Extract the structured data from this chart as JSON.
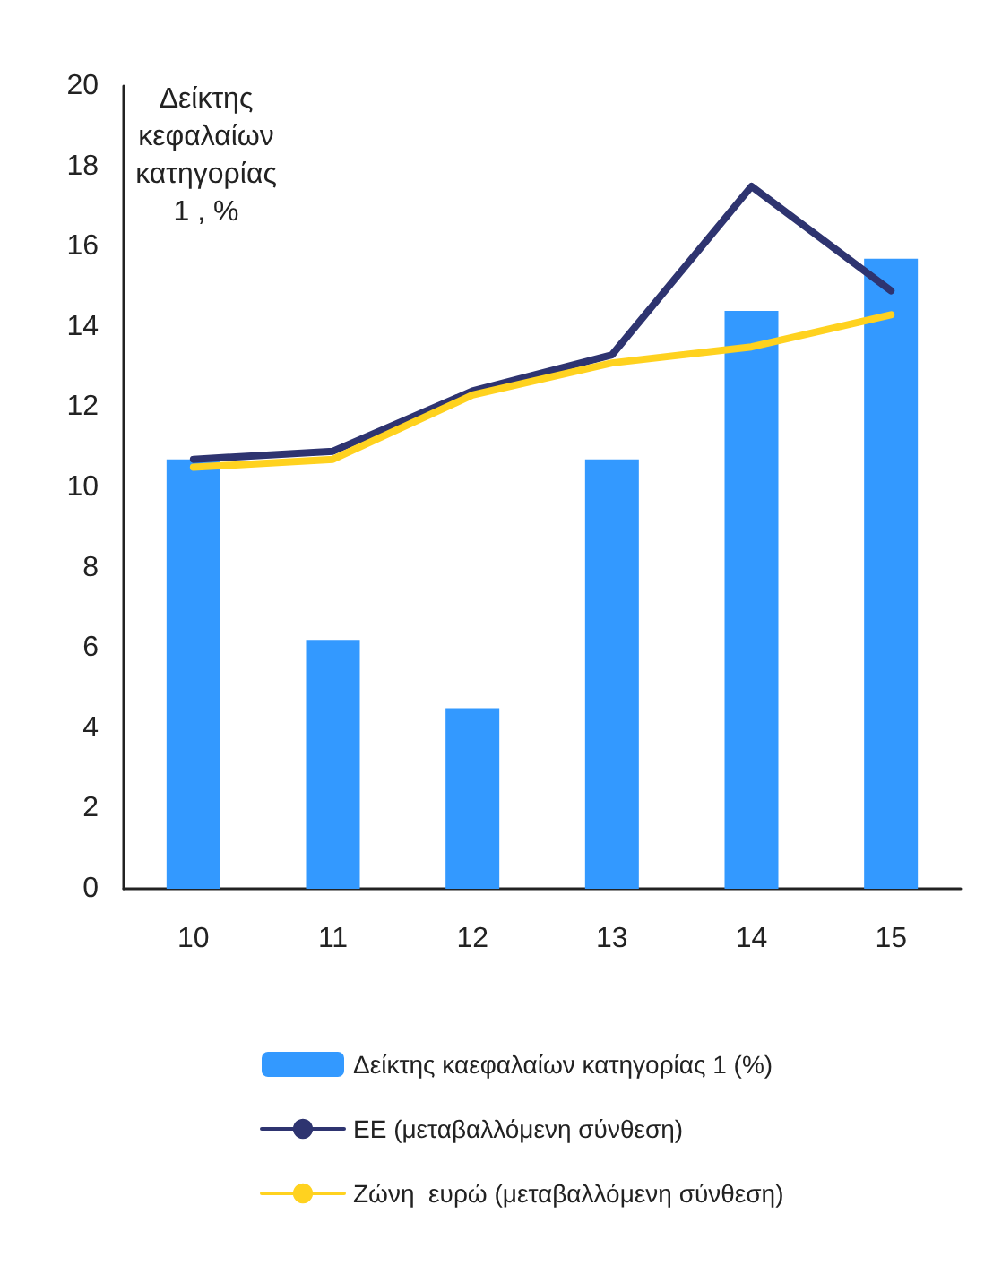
{
  "chart_data": {
    "type": "bar",
    "ylabel": "Δείκτης κεφαλαίων κατηγορίας 1 , %",
    "categories": [
      "10",
      "11",
      "12",
      "13",
      "14",
      "15"
    ],
    "series": [
      {
        "name": "Δείκτης καεφαλαίων κατηγορίας 1 (%)",
        "color": "#3399ff",
        "values": [
          10.7,
          6.2,
          4.5,
          10.7,
          14.4,
          15.7
        ]
      },
      {
        "name": "ΕΕ (μεταβαλλόμενη σύνθεση)",
        "type": "line",
        "color": "#2e3470",
        "values": [
          10.7,
          10.9,
          12.4,
          13.3,
          17.5,
          14.9
        ]
      },
      {
        "name": "Ζώνη  ευρώ (μεταβαλλόμενη σύνθεση)",
        "type": "line",
        "color": "#ffd21f",
        "values": [
          10.5,
          10.7,
          12.3,
          13.1,
          13.5,
          14.3
        ]
      }
    ],
    "ylim": [
      0,
      20
    ],
    "yticks": [
      0,
      2,
      4,
      6,
      8,
      10,
      12,
      14,
      16,
      18,
      20
    ],
    "grid": false,
    "legend": "bottom",
    "marker": "none",
    "line_style": "solid"
  }
}
